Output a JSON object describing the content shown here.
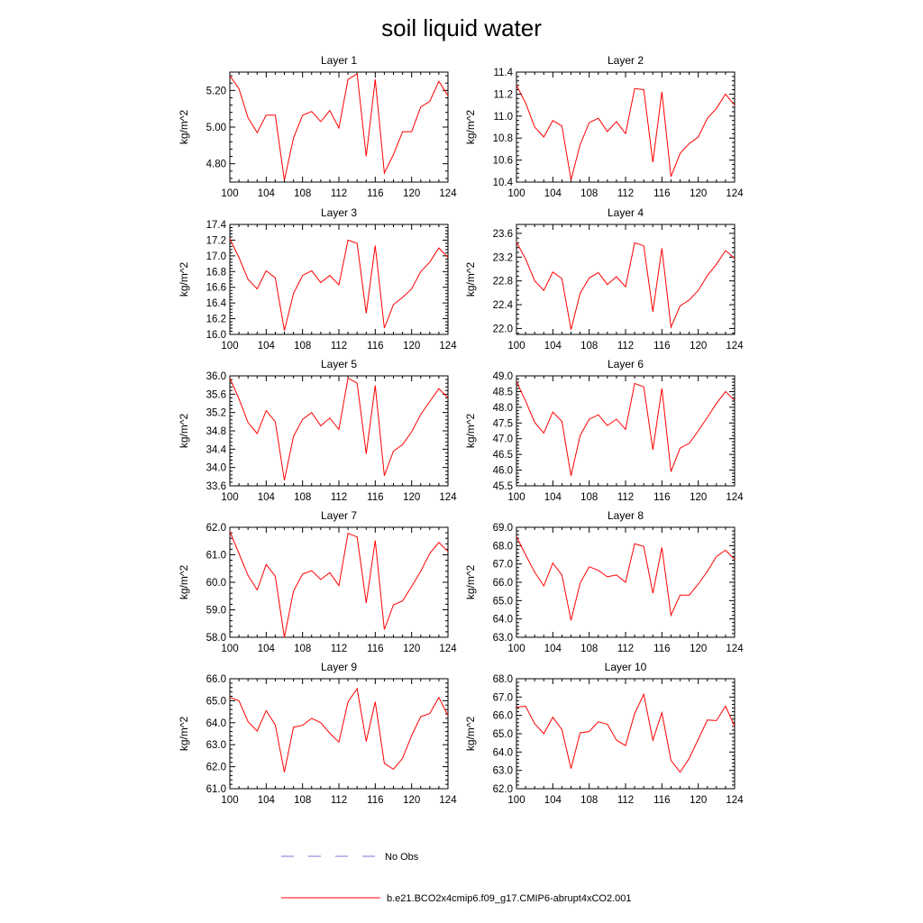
{
  "title": "soil liquid water",
  "legend": [
    {
      "label": "No Obs",
      "color": "#7777dd",
      "style": "dashed"
    },
    {
      "label": "b.e21.BCO2x4cmip6.f09_g17.CMIP6-abrupt4xCO2.001",
      "color": "#ff0000",
      "style": "solid"
    }
  ],
  "chart_data": [
    {
      "type": "line",
      "title": "Layer 1",
      "ylabel": "kg/m^2",
      "xlim": [
        100,
        124
      ],
      "ylim": [
        4.7,
        5.3
      ],
      "xticks": [
        100,
        104,
        108,
        112,
        116,
        120,
        124
      ],
      "yticks": [
        4.8,
        5.0,
        5.2
      ],
      "ytick_labels": [
        "4.80",
        "5.00",
        "5.20"
      ],
      "x": [
        100,
        101,
        102,
        103,
        104,
        105,
        106,
        107,
        108,
        109,
        110,
        111,
        112,
        113,
        114,
        115,
        116,
        117,
        118,
        119,
        120,
        121,
        122,
        123,
        124
      ],
      "series": [
        {
          "values": [
            5.28,
            5.21,
            5.05,
            4.97,
            5.065,
            5.065,
            4.71,
            4.94,
            5.065,
            5.085,
            5.03,
            5.09,
            4.995,
            5.26,
            5.29,
            4.84,
            5.26,
            4.75,
            4.85,
            4.975,
            4.975,
            5.11,
            5.14,
            5.25,
            5.17
          ]
        }
      ]
    },
    {
      "type": "line",
      "title": "Layer 2",
      "ylabel": "kg/m^2",
      "xlim": [
        100,
        124
      ],
      "ylim": [
        10.4,
        11.4
      ],
      "xticks": [
        100,
        104,
        108,
        112,
        116,
        120,
        124
      ],
      "yticks": [
        10.4,
        10.6,
        10.8,
        11.0,
        11.2,
        11.4
      ],
      "ytick_labels": [
        "10.4",
        "10.6",
        "10.8",
        "11.0",
        "11.2",
        "11.4"
      ],
      "x": [
        100,
        101,
        102,
        103,
        104,
        105,
        106,
        107,
        108,
        109,
        110,
        111,
        112,
        113,
        114,
        115,
        116,
        117,
        118,
        119,
        120,
        121,
        122,
        123,
        124
      ],
      "series": [
        {
          "values": [
            11.28,
            11.12,
            10.9,
            10.81,
            10.96,
            10.91,
            10.42,
            10.74,
            10.94,
            10.98,
            10.86,
            10.95,
            10.84,
            11.25,
            11.24,
            10.58,
            11.22,
            10.45,
            10.66,
            10.75,
            10.81,
            10.98,
            11.07,
            11.2,
            11.1
          ]
        }
      ]
    },
    {
      "type": "line",
      "title": "Layer 3",
      "ylabel": "kg/m^2",
      "xlim": [
        100,
        124
      ],
      "ylim": [
        16.0,
        17.4
      ],
      "xticks": [
        100,
        104,
        108,
        112,
        116,
        120,
        124
      ],
      "yticks": [
        16.0,
        16.2,
        16.4,
        16.6,
        16.8,
        17.0,
        17.2,
        17.4
      ],
      "ytick_labels": [
        "16.0",
        "16.2",
        "16.4",
        "16.6",
        "16.8",
        "17.0",
        "17.2",
        "17.4"
      ],
      "x": [
        100,
        101,
        102,
        103,
        104,
        105,
        106,
        107,
        108,
        109,
        110,
        111,
        112,
        113,
        114,
        115,
        116,
        117,
        118,
        119,
        120,
        121,
        122,
        123,
        124
      ],
      "series": [
        {
          "values": [
            17.22,
            16.98,
            16.7,
            16.58,
            16.81,
            16.72,
            16.05,
            16.52,
            16.75,
            16.81,
            16.66,
            16.75,
            16.63,
            17.2,
            17.16,
            16.27,
            17.13,
            16.08,
            16.38,
            16.47,
            16.58,
            16.8,
            16.92,
            17.1,
            16.98
          ]
        }
      ]
    },
    {
      "type": "line",
      "title": "Layer 4",
      "ylabel": "kg/m^2",
      "xlim": [
        100,
        124
      ],
      "ylim": [
        21.9,
        23.75
      ],
      "xticks": [
        100,
        104,
        108,
        112,
        116,
        120,
        124
      ],
      "yticks": [
        22.0,
        22.4,
        22.8,
        23.2,
        23.6
      ],
      "ytick_labels": [
        "22.0",
        "22.4",
        "22.8",
        "23.2",
        "23.6"
      ],
      "x": [
        100,
        101,
        102,
        103,
        104,
        105,
        106,
        107,
        108,
        109,
        110,
        111,
        112,
        113,
        114,
        115,
        116,
        117,
        118,
        119,
        120,
        121,
        122,
        123,
        124
      ],
      "series": [
        {
          "values": [
            23.45,
            23.17,
            22.8,
            22.64,
            22.95,
            22.84,
            21.98,
            22.59,
            22.85,
            22.94,
            22.74,
            22.87,
            22.7,
            23.44,
            23.39,
            22.28,
            23.35,
            22.02,
            22.38,
            22.48,
            22.64,
            22.89,
            23.08,
            23.31,
            23.18
          ]
        }
      ]
    },
    {
      "type": "line",
      "title": "Layer 5",
      "ylabel": "kg/m^2",
      "xlim": [
        100,
        124
      ],
      "ylim": [
        33.6,
        36.0
      ],
      "xticks": [
        100,
        104,
        108,
        112,
        116,
        120,
        124
      ],
      "yticks": [
        33.6,
        34.0,
        34.4,
        34.8,
        35.2,
        35.6,
        36.0
      ],
      "ytick_labels": [
        "33.6",
        "34.0",
        "34.4",
        "34.8",
        "35.2",
        "35.6",
        "36.0"
      ],
      "x": [
        100,
        101,
        102,
        103,
        104,
        105,
        106,
        107,
        108,
        109,
        110,
        111,
        112,
        113,
        114,
        115,
        116,
        117,
        118,
        119,
        120,
        121,
        122,
        123,
        124
      ],
      "series": [
        {
          "values": [
            35.95,
            35.5,
            34.98,
            34.74,
            35.24,
            35.0,
            33.72,
            34.68,
            35.05,
            35.2,
            34.91,
            35.08,
            34.83,
            35.95,
            35.84,
            34.3,
            35.79,
            33.82,
            34.36,
            34.5,
            34.78,
            35.16,
            35.44,
            35.72,
            35.52
          ]
        }
      ]
    },
    {
      "type": "line",
      "title": "Layer 6",
      "ylabel": "kg/m^2",
      "xlim": [
        100,
        124
      ],
      "ylim": [
        45.5,
        49.0
      ],
      "xticks": [
        100,
        104,
        108,
        112,
        116,
        120,
        124
      ],
      "yticks": [
        45.5,
        46.0,
        46.5,
        47.0,
        47.5,
        48.0,
        48.5,
        49.0
      ],
      "ytick_labels": [
        "45.5",
        "46.0",
        "46.5",
        "47.0",
        "47.5",
        "48.0",
        "48.5",
        "49.0"
      ],
      "x": [
        100,
        101,
        102,
        103,
        104,
        105,
        106,
        107,
        108,
        109,
        110,
        111,
        112,
        113,
        114,
        115,
        116,
        117,
        118,
        119,
        120,
        121,
        122,
        123,
        124
      ],
      "series": [
        {
          "values": [
            48.82,
            48.2,
            47.52,
            47.18,
            47.85,
            47.55,
            45.82,
            47.1,
            47.62,
            47.76,
            47.42,
            47.62,
            47.3,
            48.76,
            48.65,
            46.65,
            48.6,
            45.95,
            46.7,
            46.85,
            47.25,
            47.68,
            48.12,
            48.5,
            48.22
          ]
        }
      ]
    },
    {
      "type": "line",
      "title": "Layer 7",
      "ylabel": "kg/m^2",
      "xlim": [
        100,
        124
      ],
      "ylim": [
        58.0,
        62.0
      ],
      "xticks": [
        100,
        104,
        108,
        112,
        116,
        120,
        124
      ],
      "yticks": [
        58.0,
        59.0,
        60.0,
        61.0,
        62.0
      ],
      "ytick_labels": [
        "58.0",
        "59.0",
        "60.0",
        "61.0",
        "62.0"
      ],
      "x": [
        100,
        101,
        102,
        103,
        104,
        105,
        106,
        107,
        108,
        109,
        110,
        111,
        112,
        113,
        114,
        115,
        116,
        117,
        118,
        119,
        120,
        121,
        122,
        123,
        124
      ],
      "series": [
        {
          "values": [
            61.85,
            61.05,
            60.25,
            59.72,
            60.65,
            60.22,
            58.0,
            59.68,
            60.3,
            60.42,
            60.1,
            60.35,
            59.88,
            61.78,
            61.65,
            59.25,
            61.52,
            58.28,
            59.18,
            59.32,
            59.85,
            60.4,
            61.05,
            61.45,
            61.12
          ]
        }
      ]
    },
    {
      "type": "line",
      "title": "Layer 8",
      "ylabel": "kg/m^2",
      "xlim": [
        100,
        124
      ],
      "ylim": [
        63.0,
        69.0
      ],
      "xticks": [
        100,
        104,
        108,
        112,
        116,
        120,
        124
      ],
      "yticks": [
        63.0,
        64.0,
        65.0,
        66.0,
        67.0,
        68.0,
        69.0
      ],
      "ytick_labels": [
        "63.0",
        "64.0",
        "65.0",
        "66.0",
        "67.0",
        "68.0",
        "69.0"
      ],
      "x": [
        100,
        101,
        102,
        103,
        104,
        105,
        106,
        107,
        108,
        109,
        110,
        111,
        112,
        113,
        114,
        115,
        116,
        117,
        118,
        119,
        120,
        121,
        122,
        123,
        124
      ],
      "series": [
        {
          "values": [
            68.5,
            67.5,
            66.55,
            65.8,
            67.05,
            66.4,
            63.92,
            65.95,
            66.85,
            66.65,
            66.3,
            66.4,
            66.0,
            68.1,
            67.95,
            65.4,
            67.9,
            64.2,
            65.3,
            65.3,
            65.9,
            66.6,
            67.4,
            67.75,
            67.25
          ]
        }
      ]
    },
    {
      "type": "line",
      "title": "Layer 9",
      "ylabel": "kg/m^2",
      "xlim": [
        100,
        124
      ],
      "ylim": [
        61.0,
        66.0
      ],
      "xticks": [
        100,
        104,
        108,
        112,
        116,
        120,
        124
      ],
      "yticks": [
        61.0,
        62.0,
        63.0,
        64.0,
        65.0,
        66.0
      ],
      "ytick_labels": [
        "61.0",
        "62.0",
        "63.0",
        "64.0",
        "65.0",
        "66.0"
      ],
      "x": [
        100,
        101,
        102,
        103,
        104,
        105,
        106,
        107,
        108,
        109,
        110,
        111,
        112,
        113,
        114,
        115,
        116,
        117,
        118,
        119,
        120,
        121,
        122,
        123,
        124
      ],
      "series": [
        {
          "values": [
            65.15,
            65.0,
            64.05,
            63.62,
            64.55,
            63.9,
            61.75,
            63.8,
            63.88,
            64.2,
            64.0,
            63.52,
            63.12,
            64.95,
            65.55,
            63.15,
            64.95,
            62.15,
            61.88,
            62.38,
            63.42,
            64.28,
            64.42,
            65.15,
            64.32
          ]
        }
      ]
    },
    {
      "type": "line",
      "title": "Layer 10",
      "ylabel": "kg/m^2",
      "xlim": [
        100,
        124
      ],
      "ylim": [
        62.0,
        68.0
      ],
      "xticks": [
        100,
        104,
        108,
        112,
        116,
        120,
        124
      ],
      "yticks": [
        62.0,
        63.0,
        64.0,
        65.0,
        66.0,
        67.0,
        68.0
      ],
      "ytick_labels": [
        "62.0",
        "63.0",
        "64.0",
        "65.0",
        "66.0",
        "67.0",
        "68.0"
      ],
      "x": [
        100,
        101,
        102,
        103,
        104,
        105,
        106,
        107,
        108,
        109,
        110,
        111,
        112,
        113,
        114,
        115,
        116,
        117,
        118,
        119,
        120,
        121,
        122,
        123,
        124
      ],
      "series": [
        {
          "values": [
            66.45,
            66.5,
            65.55,
            65.0,
            65.9,
            65.22,
            63.1,
            65.05,
            65.12,
            65.65,
            65.52,
            64.65,
            64.35,
            66.1,
            67.15,
            64.65,
            66.15,
            63.55,
            62.9,
            63.65,
            64.7,
            65.75,
            65.72,
            66.5,
            65.42
          ]
        }
      ]
    }
  ]
}
